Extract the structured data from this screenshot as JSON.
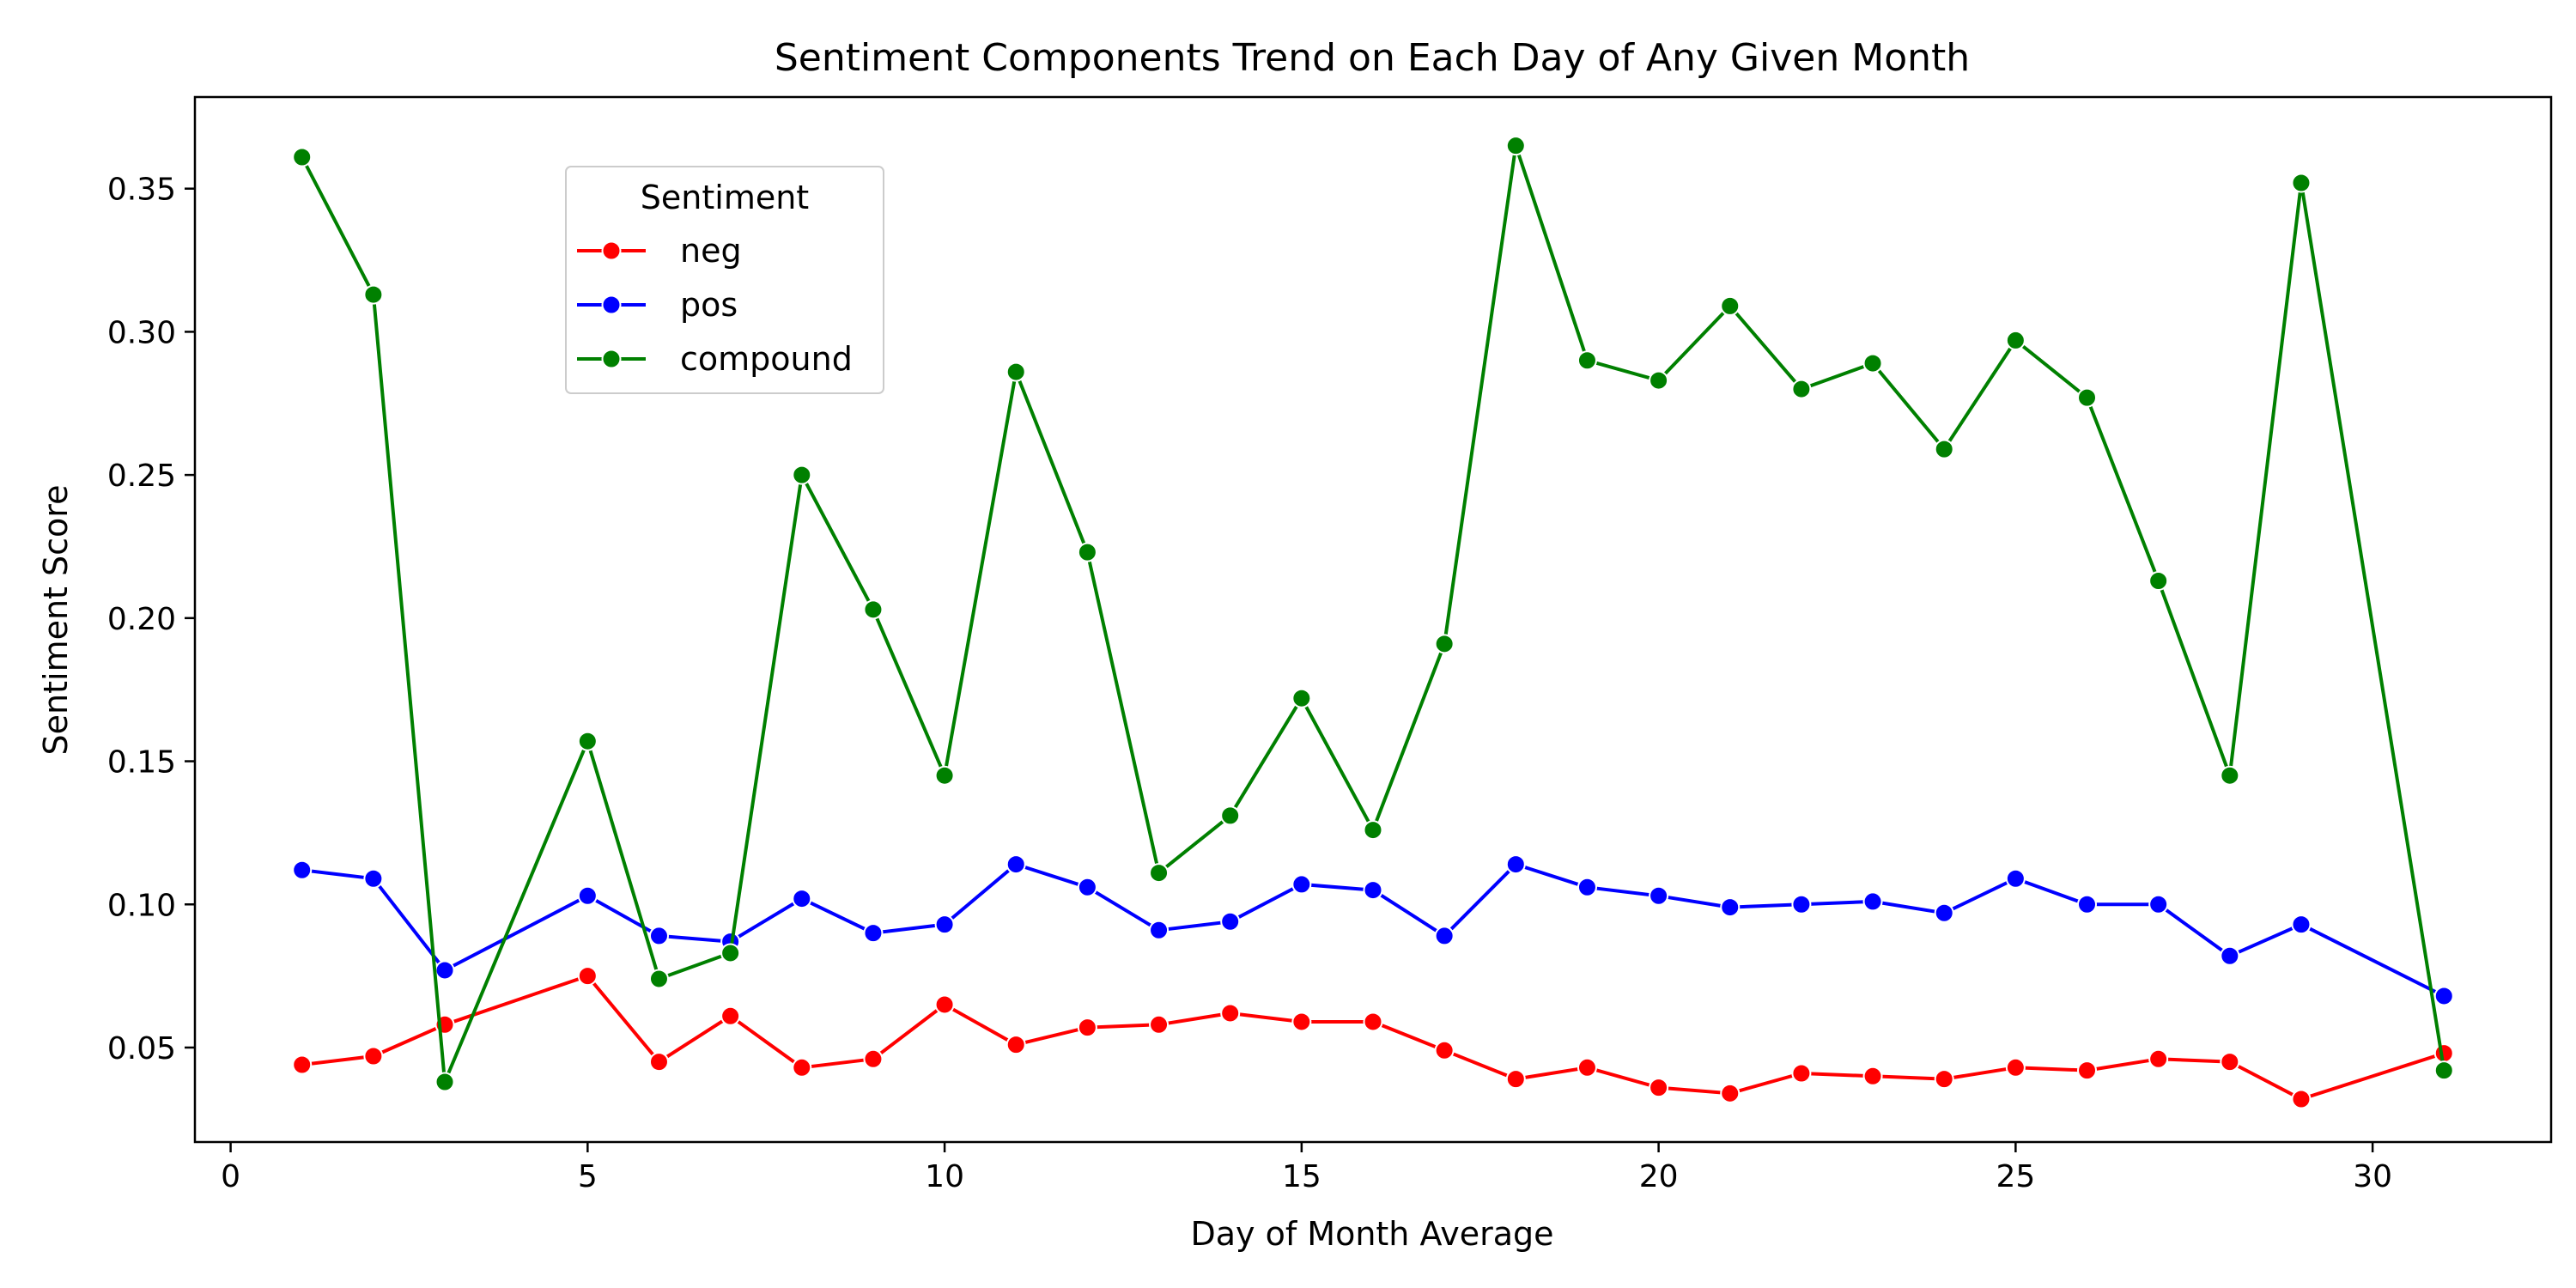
{
  "chart_data": {
    "type": "line",
    "title": "Sentiment Components Trend on Each Day of Any Given Month",
    "xlabel": "Day of Month Average",
    "ylabel": "Sentiment Score",
    "xlim": [
      -0.5,
      32.5
    ],
    "ylim": [
      0.017,
      0.382
    ],
    "xticks": [
      0,
      5,
      10,
      15,
      20,
      25,
      30
    ],
    "xtick_labels": [
      "0",
      "5",
      "10",
      "15",
      "20",
      "25",
      "30"
    ],
    "yticks": [
      0.05,
      0.1,
      0.15,
      0.2,
      0.25,
      0.3,
      0.35
    ],
    "ytick_labels": [
      "0.05",
      "0.10",
      "0.15",
      "0.20",
      "0.25",
      "0.30",
      "0.35"
    ],
    "grid": false,
    "legend": {
      "title": "Sentiment",
      "placement": "upper-left"
    },
    "x": [
      1,
      2,
      3,
      5,
      6,
      7,
      8,
      9,
      10,
      11,
      12,
      13,
      14,
      15,
      16,
      17,
      18,
      19,
      20,
      21,
      22,
      23,
      24,
      25,
      26,
      27,
      28,
      29,
      31
    ],
    "series": [
      {
        "name": "neg",
        "color": "#ff0000",
        "values": [
          0.044,
          0.047,
          0.058,
          0.075,
          0.045,
          0.061,
          0.043,
          0.046,
          0.065,
          0.051,
          0.057,
          0.058,
          0.062,
          0.059,
          0.059,
          0.049,
          0.039,
          0.043,
          0.036,
          0.034,
          0.041,
          0.04,
          0.039,
          0.043,
          0.042,
          0.046,
          0.045,
          0.032,
          0.048
        ]
      },
      {
        "name": "pos",
        "color": "#0000ff",
        "values": [
          0.112,
          0.109,
          0.077,
          0.103,
          0.089,
          0.087,
          0.102,
          0.09,
          0.093,
          0.114,
          0.106,
          0.091,
          0.094,
          0.107,
          0.105,
          0.089,
          0.114,
          0.106,
          0.103,
          0.099,
          0.1,
          0.101,
          0.097,
          0.109,
          0.1,
          0.1,
          0.082,
          0.093,
          0.068
        ]
      },
      {
        "name": "compound",
        "color": "#008000",
        "values": [
          0.361,
          0.313,
          0.038,
          0.157,
          0.074,
          0.083,
          0.25,
          0.203,
          0.145,
          0.286,
          0.223,
          0.111,
          0.131,
          0.172,
          0.126,
          0.191,
          0.365,
          0.29,
          0.283,
          0.309,
          0.28,
          0.289,
          0.259,
          0.297,
          0.277,
          0.213,
          0.145,
          0.352,
          0.042
        ]
      }
    ]
  }
}
